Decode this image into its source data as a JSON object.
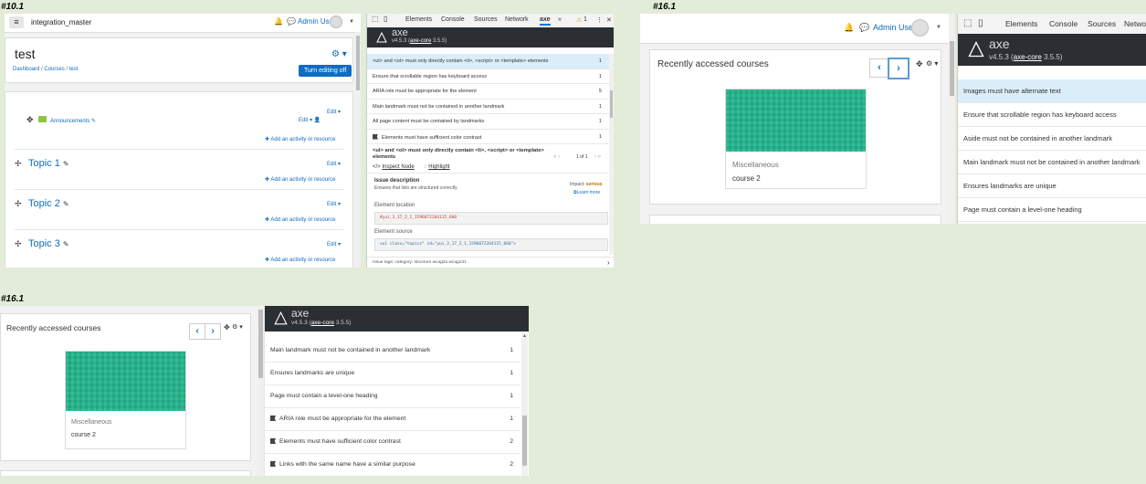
{
  "labels": [
    "#10.1",
    "#16.1",
    "#16.1"
  ],
  "colors": {
    "accent": "#0f6cbf",
    "axe_header": "#2b2f33",
    "selected_row": "#daeef9",
    "teal": "#1fb38a",
    "impact_serious": "#c66d00"
  },
  "moodle": {
    "site_name": "integration_master",
    "user": "Admin User",
    "course_title": "test",
    "breadcrumb": [
      "Dashboard",
      "Courses",
      "test"
    ],
    "turn_editing": "Turn editing off",
    "announcements": "Announcements",
    "edit": "Edit",
    "add_activity": "Add an activity or resource",
    "topics": [
      "Topic 1",
      "Topic 2",
      "Topic 3"
    ]
  },
  "devtools": {
    "tabs": [
      "Elements",
      "Console",
      "Sources",
      "Network",
      "axe",
      "»"
    ],
    "warning_count": "1",
    "tabs_right": [
      "Elements",
      "Console",
      "Sources",
      "Netwo"
    ]
  },
  "axe": {
    "title": "axe",
    "version_top": "v4.5.3 (",
    "core_link": "axe-core",
    "core_version": " 3.5.5)",
    "issues_101": [
      {
        "text": "<ul> and <ol> must only directly contain <li>, <script> or <template> elements",
        "count": "1"
      },
      {
        "text": "Ensure that scrollable region has keyboard access",
        "count": "1"
      },
      {
        "text": "ARIA role must be appropriate for the element",
        "count": "5"
      },
      {
        "text": "Main landmark must not be contained in another landmark",
        "count": "1"
      },
      {
        "text": "All page content must be contained by landmarks",
        "count": "1"
      },
      {
        "text": "Elements must have sufficient color contrast",
        "count": "1"
      }
    ],
    "detail": {
      "heading": "<ul> and <ol> must only directly contain <li>, <script> or <template> elements",
      "inspect": "Inspect Node",
      "highlight": "Highlight",
      "pager": "1 of 1",
      "issue_description": "Issue description",
      "issue_text": "Ensures that lists are structured correctly",
      "impact_label": "Impact:",
      "impact": "serious",
      "learn_more": "Learn more",
      "element_location": "Element location",
      "location_value": "#yui_3_17_2_1_1596072264115_660",
      "element_source": "Element source",
      "source_value": "<ul class=\"topics\" id=\"yui_3_17_2_1_1596072264115_660\">",
      "tags": "Issue tags:   category: structure    wcag2a    wcag131"
    },
    "issues_161a": [
      {
        "text": "Images must have alternate text"
      },
      {
        "text": "Ensure that scrollable region has keyboard access"
      },
      {
        "text": "Aside must not be contained in another landmark"
      },
      {
        "text": "Main landmark must not be contained in another landmark"
      },
      {
        "text": "Ensures landmarks are unique"
      },
      {
        "text": "Page must contain a level-one heading"
      }
    ],
    "issues_161b": [
      {
        "text": "Main landmark must not be contained in another landmark",
        "count": "1"
      },
      {
        "text": "Ensures landmarks are unique",
        "count": "1"
      },
      {
        "text": "Page must contain a level-one heading",
        "count": "1"
      },
      {
        "text": "ARIA role must be appropriate for the element",
        "count": "1"
      },
      {
        "text": "Elements must have sufficient color contrast",
        "count": "2"
      },
      {
        "text": "Links with the same name have a similar purpose",
        "count": "2"
      }
    ]
  },
  "recent": {
    "title": "Recently accessed courses",
    "category": "Miscellaneous",
    "course": "course 2"
  }
}
